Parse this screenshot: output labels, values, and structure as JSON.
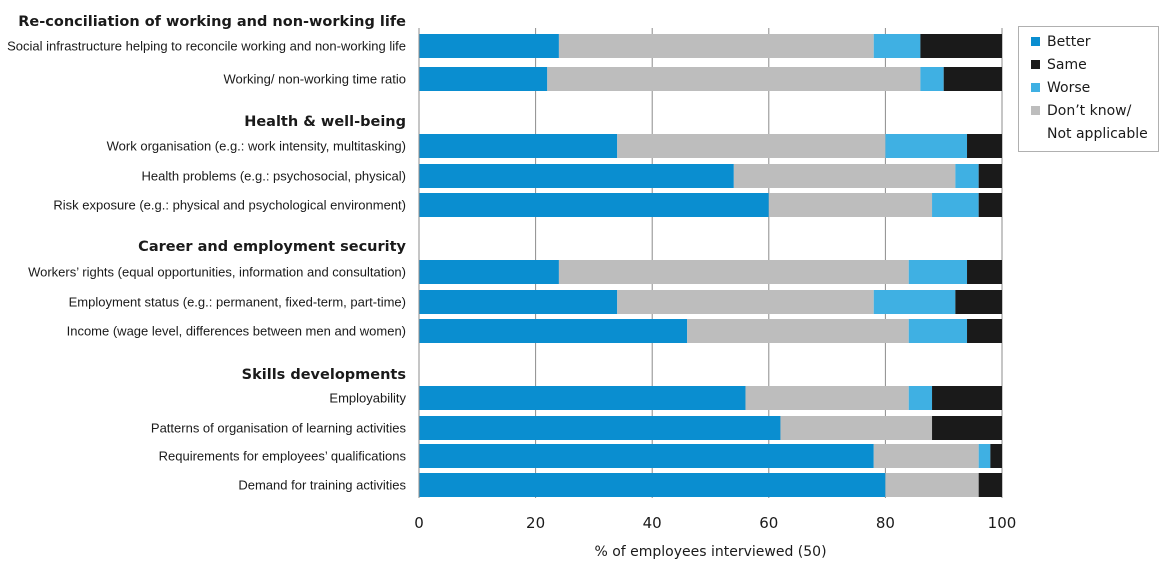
{
  "colors": {
    "better": "#0a8ed0",
    "same": "#1a1a1a",
    "worse": "#3fb0e3",
    "dont_know": "#bdbdbd",
    "grid": "#8c8c8c",
    "text": "#1a1a1a"
  },
  "chart_data": {
    "type": "bar",
    "orientation": "horizontal",
    "stacked": true,
    "xlabel": "% of employees interviewed (50)",
    "xlim": [
      0,
      100
    ],
    "xticks": [
      "0",
      "20",
      "40",
      "60",
      "80",
      "100"
    ],
    "grid": "vertical",
    "legend_position": "top-right",
    "series": [
      {
        "name": "Better",
        "color_key": "better"
      },
      {
        "name": "Same",
        "color_key": "same"
      },
      {
        "name": "Worse",
        "color_key": "worse"
      },
      {
        "name": "Don’t know/ Not applicable",
        "legend_lines": [
          "Don’t know/",
          "Not applicable"
        ],
        "color_key": "dont_know"
      }
    ],
    "groups": [
      {
        "title": "Re-conciliation of working and non-working life",
        "rows": [
          {
            "label": "Social infrastructure helping to reconcile working and non-working life",
            "better": 24,
            "dont_know": 54,
            "worse": 8,
            "same": 14
          },
          {
            "label": "Working/ non-working time ratio",
            "better": 22,
            "dont_know": 64,
            "worse": 4,
            "same": 10
          }
        ]
      },
      {
        "title": "Health & well-being",
        "rows": [
          {
            "label": "Work organisation (e.g.: work intensity, multitasking)",
            "better": 34,
            "dont_know": 46,
            "worse": 14,
            "same": 6
          },
          {
            "label": "Health problems (e.g.: psychosocial, physical)",
            "better": 54,
            "dont_know": 38,
            "worse": 4,
            "same": 4
          },
          {
            "label": "Risk exposure (e.g.: physical and psychological environment)",
            "better": 60,
            "dont_know": 28,
            "worse": 8,
            "same": 4
          }
        ]
      },
      {
        "title": "Career and employment security",
        "rows": [
          {
            "label": "Workers’ rights (equal opportunities, information and consultation)",
            "better": 24,
            "dont_know": 60,
            "worse": 10,
            "same": 6
          },
          {
            "label": "Employment status (e.g.: permanent, fixed-term, part-time)",
            "better": 34,
            "dont_know": 44,
            "worse": 14,
            "same": 8
          },
          {
            "label": "Income (wage level, differences between men and women)",
            "better": 46,
            "dont_know": 38,
            "worse": 10,
            "same": 6
          }
        ]
      },
      {
        "title": "Skills developments",
        "rows": [
          {
            "label": "Employability",
            "better": 56,
            "dont_know": 28,
            "worse": 4,
            "same": 12
          },
          {
            "label": "Patterns of organisation of learning activities",
            "better": 62,
            "dont_know": 26,
            "worse": 0,
            "same": 12
          },
          {
            "label": "Requirements for employees’ qualifications",
            "better": 78,
            "dont_know": 18,
            "worse": 2,
            "same": 2
          },
          {
            "label": "Demand for training activities",
            "better": 80,
            "dont_know": 16,
            "worse": 0,
            "same": 4
          }
        ]
      }
    ]
  }
}
